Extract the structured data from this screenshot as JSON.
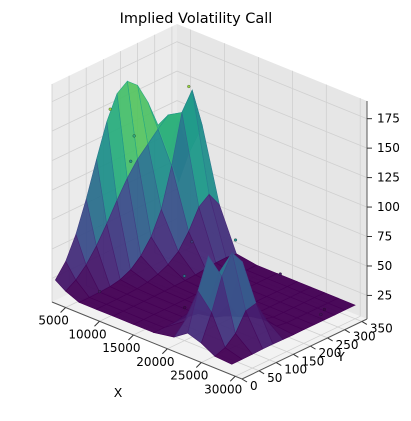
{
  "chart_data": {
    "type": "surface3d",
    "title": "Implied Volatility Call",
    "xlabel": "X",
    "ylabel": "Y",
    "zlabel": "",
    "x_ticks": [
      5000,
      10000,
      15000,
      20000,
      25000,
      30000
    ],
    "y_ticks": [
      0,
      50,
      100,
      150,
      200,
      250,
      300,
      350
    ],
    "z_ticks": [
      25,
      50,
      75,
      100,
      125,
      150,
      175
    ],
    "xlim": [
      3000,
      31000
    ],
    "ylim": [
      0,
      365
    ],
    "zlim": [
      5,
      190
    ],
    "colormap": "viridis",
    "grid": true,
    "approx_surface_points": [
      {
        "x": 3500,
        "y": 230,
        "z": 115
      },
      {
        "x": 4000,
        "y": 150,
        "z": 150
      },
      {
        "x": 4500,
        "y": 200,
        "z": 100
      },
      {
        "x": 6500,
        "y": 330,
        "z": 150
      },
      {
        "x": 9000,
        "y": 20,
        "z": 25
      },
      {
        "x": 11000,
        "y": 250,
        "z": 40
      },
      {
        "x": 16500,
        "y": 120,
        "z": 15
      },
      {
        "x": 20500,
        "y": 320,
        "z": 25
      },
      {
        "x": 22000,
        "y": 10,
        "z": 70
      },
      {
        "x": 25000,
        "y": 100,
        "z": 95
      },
      {
        "x": 27000,
        "y": 320,
        "z": 10
      },
      {
        "x": 29500,
        "y": 260,
        "z": 20
      }
    ]
  }
}
